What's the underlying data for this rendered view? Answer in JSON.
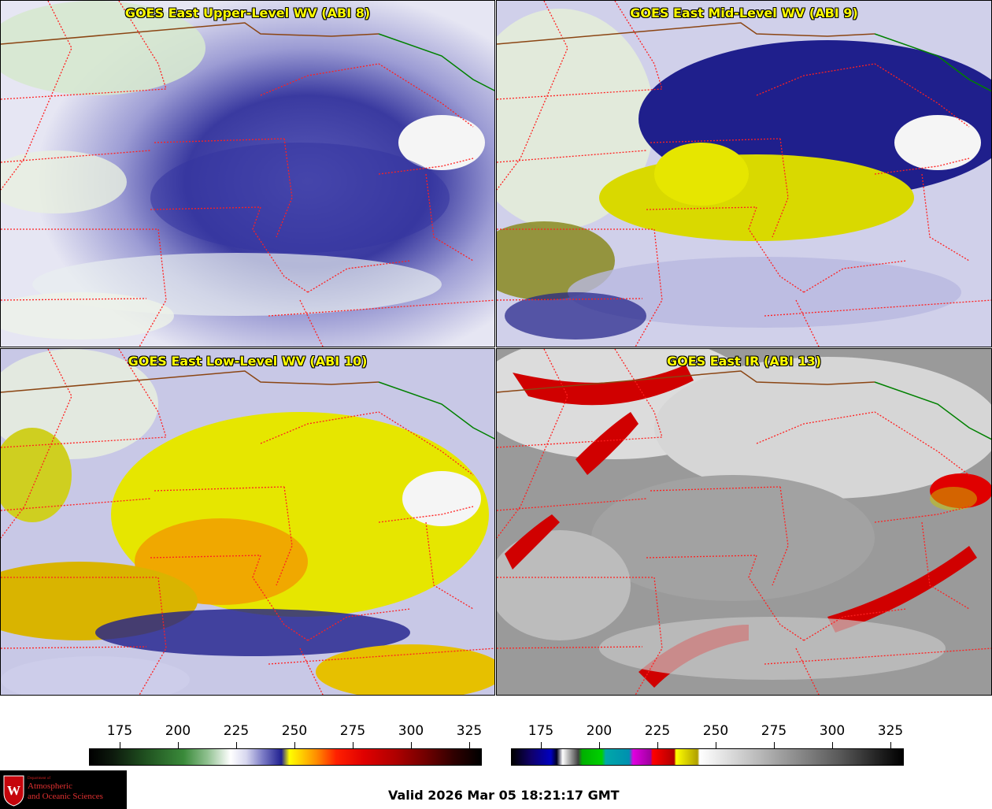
{
  "panels": [
    {
      "title": "GOES East Upper-Level WV (ABI 8)"
    },
    {
      "title": "GOES East Mid-Level WV (ABI 9)"
    },
    {
      "title": "GOES East Low-Level WV (ABI 10)"
    },
    {
      "title": "GOES East IR (ABI 13)"
    }
  ],
  "colorbars": {
    "water_vapor": {
      "ticks": [
        "175",
        "200",
        "225",
        "250",
        "275",
        "300",
        "325"
      ]
    },
    "infrared": {
      "ticks": [
        "175",
        "200",
        "225",
        "250",
        "275",
        "300",
        "325"
      ]
    }
  },
  "logo": {
    "department": "Department of",
    "line1": "Atmospheric",
    "line2": "and Oceanic Sciences"
  },
  "footer": {
    "valid_time": "Valid 2026 Mar 05 18:21:17 GMT"
  },
  "colors": {
    "title_text": "#ffff00",
    "state_borders": "#ff2020",
    "country_border": "#8b4513",
    "great_lakes_border": "#008000"
  }
}
